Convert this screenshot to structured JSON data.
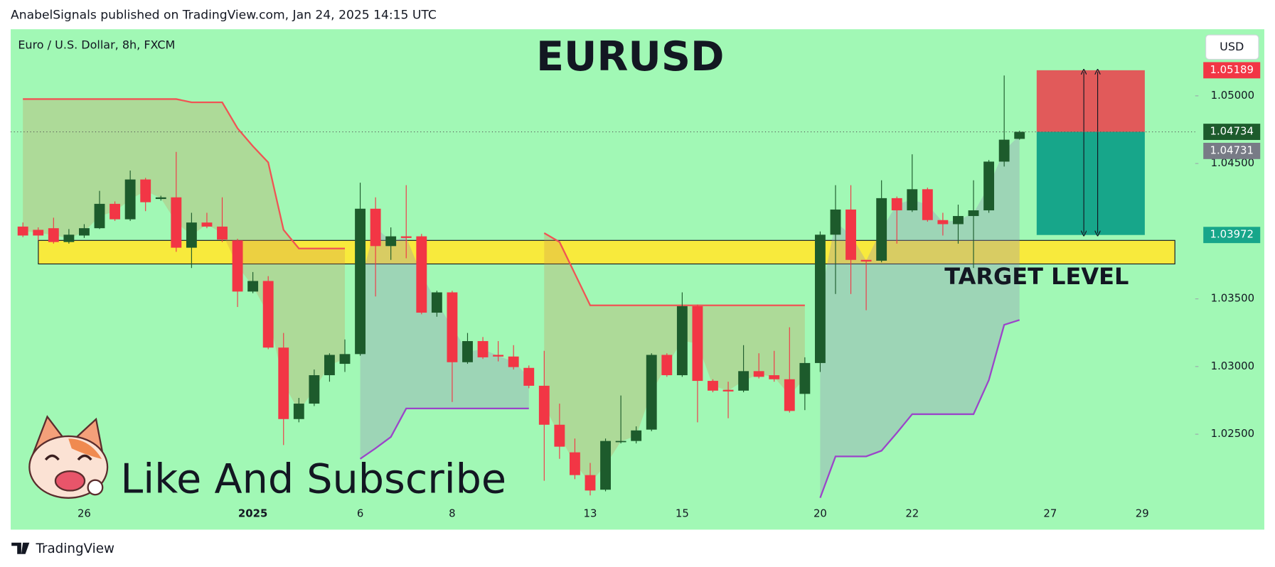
{
  "header": {
    "publisher": "AnabelSignals published on TradingView.com, Jan 24, 2025 14:15 UTC"
  },
  "footer": {
    "brand": "TradingView"
  },
  "chart_data": {
    "type": "candlestick",
    "title": "EURUSD",
    "symbol": "Euro / U.S. Dollar, 8h, FXCM",
    "currency": "USD",
    "annotation": "Like And Subscribe",
    "background": "#a1f8b5",
    "up_color": "#1d5b2c",
    "down_color": "#f23645",
    "ylim": [
      1.01795,
      1.05492
    ],
    "yticks": [
      {
        "value": 1.025,
        "label": "1.02500"
      },
      {
        "value": 1.03,
        "label": "1.03000"
      },
      {
        "value": 1.035,
        "label": "1.03500"
      },
      {
        "value": 1.045,
        "label": "1.04500"
      },
      {
        "value": 1.05,
        "label": "1.05000"
      }
    ],
    "categories": [
      null,
      null,
      null,
      null,
      "26",
      null,
      null,
      null,
      null,
      null,
      null,
      null,
      null,
      null,
      null,
      "2025",
      null,
      null,
      null,
      null,
      null,
      null,
      "6",
      null,
      null,
      null,
      null,
      null,
      "8",
      null,
      null,
      null,
      null,
      null,
      null,
      null,
      null,
      "13",
      null,
      null,
      null,
      null,
      null,
      "15",
      null,
      null,
      null,
      null,
      null,
      null,
      null,
      null,
      "20",
      null,
      null,
      null,
      null,
      null,
      "22",
      null,
      null,
      null,
      null,
      null,
      null,
      null,
      null,
      "27",
      null,
      null,
      null,
      null,
      null,
      "29",
      null,
      null,
      null
    ],
    "open": [
      1.04034,
      1.0401,
      1.04022,
      1.0392,
      1.03968,
      1.04022,
      1.04202,
      1.04088,
      1.04382,
      1.04238,
      1.0425,
      1.03878,
      1.04064,
      1.04034,
      1.03932,
      1.03554,
      1.03632,
      1.0314,
      1.02612,
      1.02726,
      1.02936,
      1.0302,
      1.03092,
      1.04166,
      1.0389,
      1.03962,
      1.03962,
      1.03398,
      1.03548,
      1.03032,
      1.03188,
      1.03086,
      1.03074,
      1.0299,
      1.02858,
      1.0257,
      1.02366,
      1.02198,
      1.0209,
      1.02444,
      1.0245,
      1.02534,
      1.03086,
      1.02936,
      1.03446,
      1.02894,
      1.02828,
      1.02822,
      1.02966,
      1.02936,
      1.02906,
      1.02798,
      1.03026,
      1.03974,
      1.0416,
      1.03788,
      1.03782,
      1.04244,
      1.04154,
      1.0431,
      1.04082,
      1.04052,
      1.04112,
      1.04154,
      1.04514,
      1.04682,
      null,
      null,
      null,
      null,
      null,
      null,
      null,
      null,
      null,
      null,
      null
    ],
    "high": [
      1.04064,
      1.04028,
      1.041,
      1.04016,
      1.04052,
      1.04298,
      1.0422,
      1.04448,
      1.04394,
      1.04262,
      1.04586,
      1.04136,
      1.04136,
      1.0425,
      1.03944,
      1.03698,
      1.03668,
      1.03248,
      1.02768,
      1.02978,
      1.03098,
      1.032,
      1.04358,
      1.0425,
      1.04028,
      1.0434,
      1.0398,
      1.0356,
      1.0356,
      1.03248,
      1.03218,
      1.03188,
      1.03158,
      1.03008,
      1.03116,
      1.02726,
      1.02468,
      1.02288,
      1.02468,
      1.02786,
      1.02558,
      1.03098,
      1.03098,
      1.03548,
      1.03458,
      1.02906,
      1.02888,
      1.03158,
      1.03098,
      1.03116,
      1.0329,
      1.03068,
      1.03998,
      1.0434,
      1.0434,
      1.03788,
      1.04376,
      1.04256,
      1.04568,
      1.04322,
      1.04136,
      1.04196,
      1.04376,
      1.04526,
      1.0515,
      1.04742,
      null,
      null,
      null,
      null,
      null,
      null,
      null,
      null,
      null,
      null,
      null
    ],
    "low": [
      1.03956,
      1.03932,
      1.03908,
      1.03908,
      1.0395,
      1.04016,
      1.04076,
      1.04076,
      1.04148,
      1.04226,
      1.03848,
      1.03728,
      1.04022,
      1.0392,
      1.0344,
      1.03542,
      1.03128,
      1.0242,
      1.02588,
      1.02708,
      1.02888,
      1.0296,
      1.0308,
      1.03518,
      1.03788,
      1.038,
      1.03386,
      1.03368,
      1.02738,
      1.0302,
      1.03056,
      1.03038,
      1.02978,
      1.0284,
      1.02156,
      1.02318,
      1.02168,
      1.02048,
      1.02078,
      1.02432,
      1.02432,
      1.02522,
      1.02924,
      1.02924,
      1.02588,
      1.0281,
      1.02618,
      1.0281,
      1.02912,
      1.02888,
      1.0266,
      1.02678,
      1.0296,
      1.03536,
      1.03536,
      1.03416,
      1.0377,
      1.03908,
      1.04142,
      1.0407,
      1.03968,
      1.03908,
      1.03728,
      1.04136,
      1.04478,
      1.04676,
      null,
      null,
      null,
      null,
      null,
      null,
      null,
      null,
      null,
      null,
      null
    ],
    "close": [
      1.03968,
      1.03968,
      1.0392,
      1.03974,
      1.04022,
      1.04202,
      1.04088,
      1.04382,
      1.04214,
      1.0425,
      1.03878,
      1.04064,
      1.04034,
      1.03938,
      1.03554,
      1.03632,
      1.0314,
      1.02612,
      1.02726,
      1.02936,
      1.03086,
      1.03092,
      1.04166,
      1.0389,
      1.03962,
      1.0395,
      1.03398,
      1.03548,
      1.03032,
      1.03188,
      1.03068,
      1.03074,
      1.02996,
      1.02858,
      1.0257,
      1.02408,
      1.02198,
      1.02084,
      1.0245,
      1.0245,
      1.02528,
      1.03086,
      1.02936,
      1.03446,
      1.02894,
      1.02822,
      1.02816,
      1.02966,
      1.02924,
      1.02906,
      1.02672,
      1.03026,
      1.03974,
      1.0416,
      1.03788,
      1.03776,
      1.04244,
      1.04154,
      1.0431,
      1.04082,
      1.04052,
      1.04112,
      1.04154,
      1.04514,
      1.04676,
      1.04734,
      null,
      null,
      null,
      null,
      null,
      null,
      null,
      null,
      null,
      null,
      null
    ],
    "upper_band": {
      "color": "#f05454",
      "fill": "rgba(205,140,80,0.28)",
      "values": [
        1.04976,
        1.04976,
        1.04976,
        1.04976,
        1.04976,
        1.04976,
        1.04976,
        1.04976,
        1.04976,
        1.04976,
        1.04976,
        1.04952,
        1.04952,
        1.04952,
        1.0476,
        1.04628,
        1.04508,
        1.0401,
        1.03872,
        1.03872,
        1.03872,
        1.03872,
        null,
        null,
        null,
        null,
        null,
        null,
        null,
        null,
        null,
        null,
        null,
        null,
        1.03986,
        1.0392,
        1.03686,
        1.03452,
        1.03452,
        1.03452,
        1.03452,
        1.03452,
        1.03452,
        1.03452,
        1.03452,
        1.03452,
        1.03452,
        1.03452,
        1.03452,
        1.03452,
        1.03452,
        1.03452,
        null,
        null,
        null,
        null,
        null,
        null,
        null,
        null,
        null,
        null,
        null,
        null,
        null,
        null,
        null,
        null,
        null,
        null,
        null,
        null,
        null,
        null,
        null,
        null,
        null
      ]
    },
    "lower_band": {
      "color": "#9b45c9",
      "fill": "rgba(150,140,185,0.32)",
      "values": [
        null,
        null,
        null,
        null,
        null,
        null,
        null,
        null,
        null,
        null,
        null,
        null,
        null,
        null,
        null,
        null,
        null,
        null,
        null,
        null,
        null,
        null,
        1.02318,
        1.02396,
        1.0248,
        1.0269,
        1.0269,
        1.0269,
        1.0269,
        1.0269,
        1.0269,
        1.0269,
        1.0269,
        1.0269,
        null,
        null,
        null,
        null,
        null,
        null,
        null,
        null,
        null,
        null,
        null,
        null,
        null,
        null,
        null,
        null,
        null,
        null,
        1.0203,
        1.02336,
        1.02336,
        1.02336,
        1.02378,
        1.0251,
        1.02648,
        1.02648,
        1.02648,
        1.02648,
        1.02648,
        1.029,
        1.03308,
        1.03344,
        null,
        null,
        null,
        null,
        null,
        null,
        null,
        null,
        null,
        null,
        null
      ]
    },
    "zone": {
      "top": 1.03932,
      "bottom": 1.03758,
      "label": "TARGET LEVEL",
      "color": "#f8ea3c"
    },
    "position": {
      "stop": 1.05189,
      "entry": 1.04734,
      "target": 1.03972,
      "stop_color": "#e15a5a",
      "target_color": "#17a68a"
    },
    "last_price": 1.04734,
    "bid_price": 1.04731
  }
}
